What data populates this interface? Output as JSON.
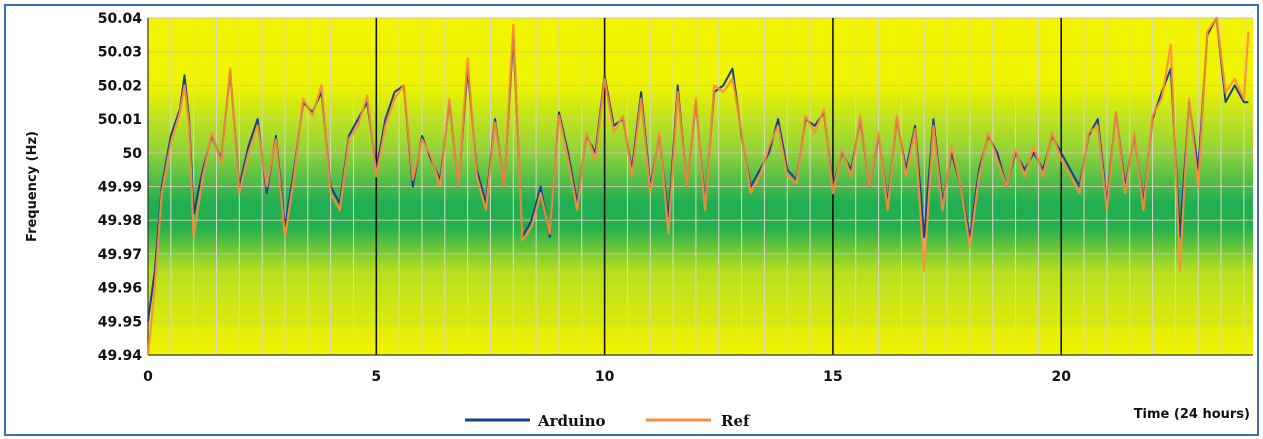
{
  "chart_data": {
    "type": "line",
    "title": "",
    "xlabel": "Time (24 hours)",
    "ylabel": "Frequency (Hz)",
    "xlim": [
      0,
      24.2
    ],
    "ylim": [
      49.94,
      50.04
    ],
    "x_ticks": [
      "0",
      "5",
      "10",
      "15",
      "20"
    ],
    "x_tick_values": [
      0,
      5,
      10,
      15,
      20
    ],
    "y_ticks": [
      "49.94",
      "49.95",
      "49.96",
      "49.97",
      "49.98",
      "49.99",
      "50",
      "50.01",
      "50.02",
      "50.03",
      "50.04"
    ],
    "y_tick_values": [
      49.94,
      49.95,
      49.96,
      49.97,
      49.98,
      49.99,
      50.0,
      50.01,
      50.02,
      50.03,
      50.04
    ],
    "grid": true,
    "legend_position": "bottom-center",
    "colors": {
      "arduino": "#1c3f8f",
      "ref": "#ff8c3a",
      "border": "#3b6fb0"
    },
    "series": [
      {
        "name": "Arduino",
        "x": [
          0,
          0.15,
          0.3,
          0.5,
          0.7,
          0.8,
          0.9,
          1.0,
          1.2,
          1.4,
          1.6,
          1.8,
          2.0,
          2.2,
          2.4,
          2.6,
          2.8,
          3.0,
          3.2,
          3.4,
          3.6,
          3.8,
          4.0,
          4.2,
          4.4,
          4.6,
          4.8,
          5.0,
          5.2,
          5.4,
          5.6,
          5.8,
          6.0,
          6.2,
          6.4,
          6.6,
          6.8,
          7.0,
          7.2,
          7.4,
          7.6,
          7.8,
          8.0,
          8.2,
          8.4,
          8.6,
          8.8,
          9.0,
          9.2,
          9.4,
          9.6,
          9.8,
          10.0,
          10.2,
          10.4,
          10.6,
          10.8,
          11.0,
          11.2,
          11.4,
          11.6,
          11.8,
          12.0,
          12.2,
          12.4,
          12.6,
          12.8,
          13.0,
          13.2,
          13.4,
          13.6,
          13.8,
          14.0,
          14.2,
          14.4,
          14.6,
          14.8,
          15.0,
          15.2,
          15.4,
          15.6,
          15.8,
          16.0,
          16.2,
          16.4,
          16.6,
          16.8,
          17.0,
          17.2,
          17.4,
          17.6,
          17.8,
          18.0,
          18.2,
          18.4,
          18.6,
          18.8,
          19.0,
          19.2,
          19.4,
          19.6,
          19.8,
          20.0,
          20.2,
          20.4,
          20.6,
          20.8,
          21.0,
          21.2,
          21.4,
          21.6,
          21.8,
          22.0,
          22.2,
          22.4,
          22.6,
          22.8,
          23.0,
          23.2,
          23.4,
          23.6,
          23.8,
          24.0,
          24.1
        ],
        "values": [
          49.95,
          49.965,
          49.99,
          50.005,
          50.013,
          50.023,
          50.01,
          49.982,
          49.995,
          50.005,
          49.998,
          50.024,
          49.99,
          50.002,
          50.01,
          49.988,
          50.005,
          49.978,
          49.995,
          50.015,
          50.012,
          50.018,
          49.99,
          49.985,
          50.005,
          50.01,
          50.015,
          49.995,
          50.01,
          50.018,
          50.02,
          49.99,
          50.005,
          49.998,
          49.992,
          50.015,
          49.99,
          50.025,
          49.995,
          49.985,
          50.01,
          49.99,
          50.035,
          49.975,
          49.98,
          49.99,
          49.975,
          50.012,
          50.0,
          49.985,
          50.005,
          50.0,
          50.023,
          50.008,
          50.01,
          49.995,
          50.018,
          49.99,
          50.005,
          49.98,
          50.02,
          49.99,
          50.015,
          49.985,
          50.018,
          50.02,
          50.025,
          50.005,
          49.99,
          49.995,
          50.0,
          50.01,
          49.995,
          49.992,
          50.01,
          50.008,
          50.012,
          49.99,
          50.0,
          49.995,
          50.01,
          49.99,
          50.005,
          49.985,
          50.01,
          49.995,
          50.008,
          49.975,
          50.01,
          49.985,
          50.0,
          49.99,
          49.975,
          49.995,
          50.005,
          50.0,
          49.99,
          50.0,
          49.995,
          50.0,
          49.995,
          50.005,
          50.0,
          49.995,
          49.99,
          50.005,
          50.01,
          49.985,
          50.012,
          49.99,
          50.005,
          49.985,
          50.01,
          50.018,
          50.025,
          49.975,
          50.015,
          49.995,
          50.035,
          50.04,
          50.015,
          50.02,
          50.015,
          50.015
        ]
      },
      {
        "name": "Ref",
        "x": [
          0,
          0.15,
          0.3,
          0.5,
          0.7,
          0.8,
          0.9,
          1.0,
          1.2,
          1.4,
          1.6,
          1.8,
          2.0,
          2.2,
          2.4,
          2.6,
          2.8,
          3.0,
          3.2,
          3.4,
          3.6,
          3.8,
          4.0,
          4.2,
          4.4,
          4.6,
          4.8,
          5.0,
          5.2,
          5.4,
          5.6,
          5.8,
          6.0,
          6.2,
          6.4,
          6.6,
          6.8,
          7.0,
          7.2,
          7.4,
          7.6,
          7.8,
          8.0,
          8.2,
          8.4,
          8.6,
          8.8,
          9.0,
          9.2,
          9.4,
          9.6,
          9.8,
          10.0,
          10.2,
          10.4,
          10.6,
          10.8,
          11.0,
          11.2,
          11.4,
          11.6,
          11.8,
          12.0,
          12.2,
          12.4,
          12.6,
          12.8,
          13.0,
          13.2,
          13.4,
          13.6,
          13.8,
          14.0,
          14.2,
          14.4,
          14.6,
          14.8,
          15.0,
          15.2,
          15.4,
          15.6,
          15.8,
          16.0,
          16.2,
          16.4,
          16.6,
          16.8,
          17.0,
          17.2,
          17.4,
          17.6,
          17.8,
          18.0,
          18.2,
          18.4,
          18.6,
          18.8,
          19.0,
          19.2,
          19.4,
          19.6,
          19.8,
          20.0,
          20.2,
          20.4,
          20.6,
          20.8,
          21.0,
          21.2,
          21.4,
          21.6,
          21.8,
          22.0,
          22.2,
          22.4,
          22.6,
          22.8,
          23.0,
          23.2,
          23.4,
          23.6,
          23.8,
          24.0,
          24.1
        ],
        "values": [
          49.94,
          49.96,
          49.988,
          50.003,
          50.012,
          50.02,
          50.008,
          49.975,
          49.993,
          50.006,
          49.997,
          50.025,
          49.988,
          50.0,
          50.008,
          49.99,
          50.004,
          49.975,
          49.993,
          50.016,
          50.011,
          50.02,
          49.988,
          49.983,
          50.004,
          50.008,
          50.017,
          49.993,
          50.008,
          50.016,
          50.02,
          49.992,
          50.004,
          49.999,
          49.99,
          50.016,
          49.99,
          50.028,
          49.993,
          49.983,
          50.009,
          49.99,
          50.038,
          49.974,
          49.978,
          49.988,
          49.976,
          50.011,
          49.998,
          49.983,
          50.006,
          49.998,
          50.022,
          50.006,
          50.011,
          49.993,
          50.016,
          49.988,
          50.006,
          49.976,
          50.018,
          49.99,
          50.016,
          49.983,
          50.02,
          50.018,
          50.022,
          50.006,
          49.988,
          49.993,
          50.002,
          50.008,
          49.993,
          49.991,
          50.011,
          50.006,
          50.013,
          49.988,
          50.001,
          49.993,
          50.011,
          49.99,
          50.006,
          49.983,
          50.011,
          49.993,
          50.007,
          49.965,
          50.008,
          49.983,
          50.002,
          49.99,
          49.972,
          49.993,
          50.006,
          49.998,
          49.99,
          50.001,
          49.993,
          50.002,
          49.993,
          50.006,
          49.998,
          49.993,
          49.988,
          50.006,
          50.008,
          49.983,
          50.012,
          49.988,
          50.006,
          49.983,
          50.011,
          50.016,
          50.032,
          49.965,
          50.016,
          49.99,
          50.036,
          50.04,
          50.018,
          50.022,
          50.016,
          50.036
        ]
      }
    ]
  }
}
